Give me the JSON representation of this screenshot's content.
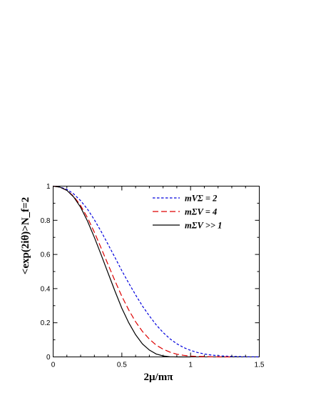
{
  "chart_data": {
    "type": "line",
    "xlabel": "2μ/mπ",
    "ylabel": "<exp(2iθ)>N_f=2",
    "xlim": [
      0,
      1.5
    ],
    "ylim": [
      0,
      1
    ],
    "x_ticks": [
      "0",
      "0.5",
      "1",
      "1.5"
    ],
    "y_ticks": [
      "0",
      "0.2",
      "0.4",
      "0.6",
      "0.8",
      "1"
    ],
    "grid": false,
    "legend_position": "top-right",
    "series": [
      {
        "name": "mVΣ = 2",
        "color": "#0000dd",
        "dash": "dotted",
        "x": [
          0,
          0.05,
          0.1,
          0.15,
          0.2,
          0.25,
          0.3,
          0.35,
          0.4,
          0.45,
          0.5,
          0.55,
          0.6,
          0.65,
          0.7,
          0.75,
          0.8,
          0.85,
          0.9,
          0.95,
          1.0,
          1.05,
          1.1,
          1.15,
          1.2,
          1.25,
          1.3,
          1.35,
          1.4,
          1.45,
          1.5
        ],
        "y": [
          1.0,
          0.995,
          0.981,
          0.954,
          0.915,
          0.865,
          0.803,
          0.734,
          0.658,
          0.582,
          0.505,
          0.432,
          0.363,
          0.298,
          0.24,
          0.188,
          0.143,
          0.106,
          0.077,
          0.055,
          0.038,
          0.026,
          0.017,
          0.011,
          0.007,
          0.005,
          0.003,
          0.002,
          0.001,
          0.001,
          0.0
        ]
      },
      {
        "name": "mΣV = 4",
        "color": "#dd0000",
        "dash": "dashed",
        "x": [
          0,
          0.05,
          0.1,
          0.15,
          0.2,
          0.25,
          0.3,
          0.35,
          0.4,
          0.45,
          0.5,
          0.55,
          0.6,
          0.65,
          0.7,
          0.75,
          0.8,
          0.85,
          0.9,
          0.95,
          1.0,
          1.05,
          1.1,
          1.15,
          1.2,
          1.25,
          1.3
        ],
        "y": [
          1.0,
          0.994,
          0.975,
          0.94,
          0.886,
          0.815,
          0.73,
          0.636,
          0.54,
          0.445,
          0.355,
          0.275,
          0.206,
          0.149,
          0.104,
          0.069,
          0.045,
          0.028,
          0.016,
          0.009,
          0.005,
          0.003,
          0.002,
          0.001,
          0.0,
          0.0,
          0.0
        ]
      },
      {
        "name": "mΣV >> 1",
        "color": "#000000",
        "dash": "solid",
        "x": [
          0,
          0.05,
          0.1,
          0.15,
          0.2,
          0.25,
          0.3,
          0.35,
          0.4,
          0.45,
          0.5,
          0.55,
          0.6,
          0.65,
          0.7,
          0.75,
          0.8,
          0.85,
          0.9,
          0.95,
          1.0
        ],
        "y": [
          1.0,
          0.994,
          0.975,
          0.936,
          0.876,
          0.795,
          0.7,
          0.597,
          0.49,
          0.385,
          0.285,
          0.2,
          0.13,
          0.076,
          0.04,
          0.017,
          0.006,
          0.001,
          0.0,
          0.0,
          0.0
        ]
      }
    ],
    "legend": [
      "mVΣ = 2",
      "mΣV = 4",
      "mΣV >> 1"
    ]
  }
}
